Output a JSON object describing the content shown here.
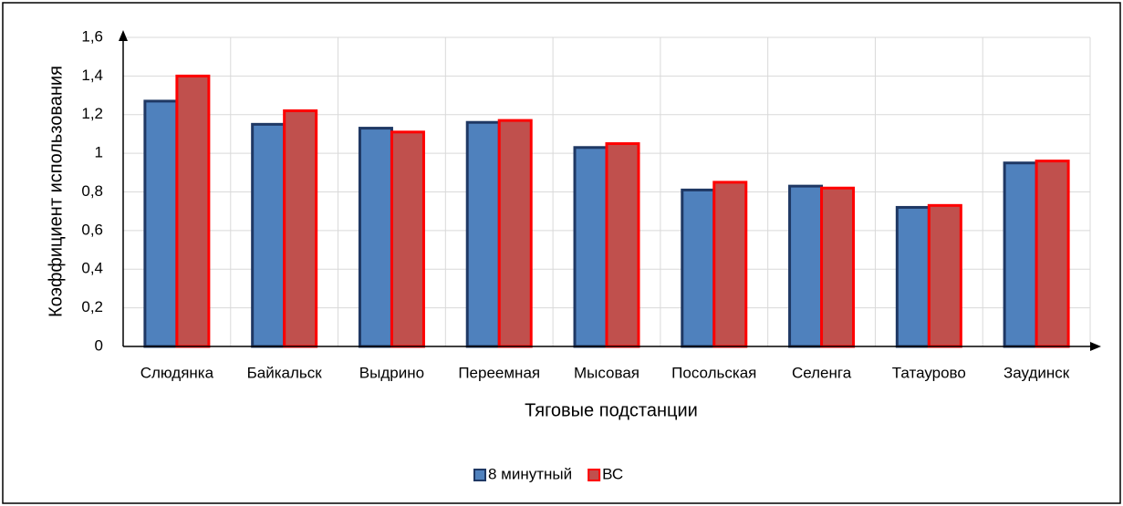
{
  "chart_data": {
    "type": "bar",
    "x_label": "Тяговые подстанции",
    "y_label": "Коэффициент использования",
    "categories": [
      "Слюдянка",
      "Байкальск",
      "Выдрино",
      "Переемная",
      "Мысовая",
      "Посольская",
      "Селенга",
      "Татаурово",
      "Заудинск"
    ],
    "series": [
      {
        "name": "8 минутный",
        "color": "#4f81bd",
        "edge": "#1f3864",
        "values": [
          1.27,
          1.15,
          1.13,
          1.16,
          1.03,
          0.81,
          0.83,
          0.72,
          0.95
        ]
      },
      {
        "name": "ВС",
        "color": "#c0504d",
        "edge": "#ff0000",
        "values": [
          1.4,
          1.22,
          1.11,
          1.17,
          1.05,
          0.85,
          0.82,
          0.73,
          0.96
        ]
      }
    ],
    "ylim": [
      0,
      1.6
    ],
    "yticks": [
      0,
      {
        "value": 0.2,
        "label": "0,2"
      },
      {
        "value": 0.4,
        "label": "0,4"
      },
      {
        "value": 0.6,
        "label": "0,6"
      },
      {
        "value": 0.8,
        "label": "0,8"
      },
      1,
      {
        "value": 1.2,
        "label": "1,2"
      },
      {
        "value": 1.4,
        "label": "1,4"
      },
      {
        "value": 1.6,
        "label": "1,6"
      }
    ],
    "grid": true,
    "legend": "bottom"
  }
}
